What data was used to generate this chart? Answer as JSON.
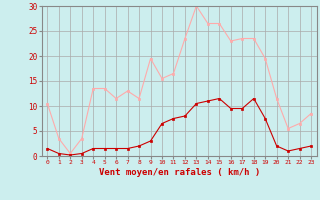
{
  "x": [
    0,
    1,
    2,
    3,
    4,
    5,
    6,
    7,
    8,
    9,
    10,
    11,
    12,
    13,
    14,
    15,
    16,
    17,
    18,
    19,
    20,
    21,
    22,
    23
  ],
  "wind_avg": [
    1.5,
    0.5,
    0.2,
    0.5,
    1.5,
    1.5,
    1.5,
    1.5,
    2.0,
    3.0,
    6.5,
    7.5,
    8.0,
    10.5,
    11.0,
    11.5,
    9.5,
    9.5,
    11.5,
    7.5,
    2.0,
    1.0,
    1.5,
    2.0
  ],
  "wind_gust": [
    10.5,
    3.5,
    0.5,
    3.5,
    13.5,
    13.5,
    11.5,
    13.0,
    11.5,
    19.5,
    15.5,
    16.5,
    23.5,
    30.0,
    26.5,
    26.5,
    23.0,
    23.5,
    23.5,
    19.5,
    11.5,
    5.5,
    6.5,
    8.5
  ],
  "avg_color": "#cc0000",
  "gust_color": "#ffaaaa",
  "bg_color": "#cceeee",
  "grid_color": "#aaaaaa",
  "xlabel": "Vent moyen/en rafales ( km/h )",
  "xlabel_color": "#cc0000",
  "ylim": [
    0,
    30
  ],
  "yticks": [
    0,
    5,
    10,
    15,
    20,
    25,
    30
  ],
  "xticks": [
    0,
    1,
    2,
    3,
    4,
    5,
    6,
    7,
    8,
    9,
    10,
    11,
    12,
    13,
    14,
    15,
    16,
    17,
    18,
    19,
    20,
    21,
    22,
    23
  ]
}
